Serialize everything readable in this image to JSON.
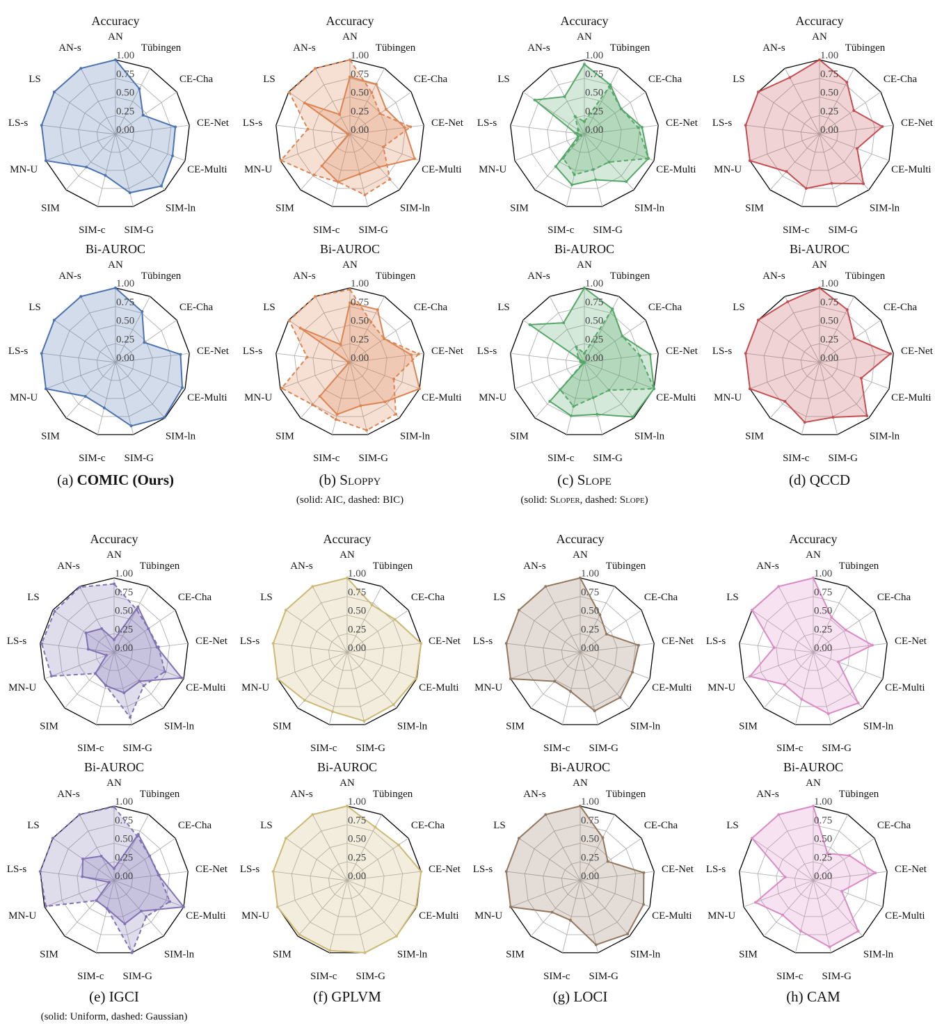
{
  "panels": [
    {
      "label": "(a)",
      "name": "COMIC (Ours)",
      "bold": true,
      "smallcaps": false,
      "note": []
    },
    {
      "label": "(b)",
      "name": "Sloppy",
      "bold": false,
      "smallcaps": true,
      "note": [
        {
          "text": "(solid: AIC, dashed: BIC)",
          "sc": false
        }
      ]
    },
    {
      "label": "(c)",
      "name": "Slope",
      "bold": false,
      "smallcaps": true,
      "note": [
        {
          "text": "(solid: ",
          "sc": false
        },
        {
          "text": "Sloper",
          "sc": true
        },
        {
          "text": ", dashed: ",
          "sc": false
        },
        {
          "text": "Slope",
          "sc": true
        },
        {
          "text": ")",
          "sc": false
        }
      ]
    },
    {
      "label": "(d)",
      "name": "QCCD",
      "bold": false,
      "smallcaps": false,
      "note": []
    },
    {
      "label": "(e)",
      "name": "IGCI",
      "bold": false,
      "smallcaps": false,
      "note": [
        {
          "text": "(solid: Uniform, dashed: Gaussian)",
          "sc": false
        }
      ]
    },
    {
      "label": "(f)",
      "name": "GPLVM",
      "bold": false,
      "smallcaps": false,
      "note": []
    },
    {
      "label": "(g)",
      "name": "LOCI",
      "bold": false,
      "smallcaps": false,
      "note": []
    },
    {
      "label": "(h)",
      "name": "CAM",
      "bold": false,
      "smallcaps": false,
      "note": []
    }
  ],
  "chart_data": [
    {
      "type": "radar",
      "panel": "a",
      "title": "Accuracy",
      "color": "#4c72b0",
      "rlim": [
        0,
        1
      ],
      "rticks": [
        "0.00",
        "0.25",
        "0.50",
        "0.75",
        "1.00"
      ],
      "grid": true,
      "categories": [
        "AN",
        "Tübingen",
        "CE-Cha",
        "CE-Net",
        "CE-Multi",
        "SIM-ln",
        "SIM-G",
        "SIM-c",
        "SIM",
        "MN-U",
        "LS-s",
        "LS",
        "AN-s"
      ],
      "series": [
        {
          "line": "solid",
          "values": [
            1.0,
            0.69,
            0.45,
            0.81,
            0.82,
            0.93,
            0.81,
            0.57,
            0.59,
            1.0,
            1.0,
            1.0,
            1.0
          ]
        }
      ]
    },
    {
      "type": "radar",
      "panel": "a",
      "title": "Bi-AUROC",
      "color": "#4c72b0",
      "rlim": [
        0,
        1
      ],
      "rticks": [
        "0.00",
        "0.25",
        "0.50",
        "0.75",
        "1.00"
      ],
      "grid": true,
      "categories": [
        "AN",
        "Tübingen",
        "CE-Cha",
        "CE-Net",
        "CE-Multi",
        "SIM-ln",
        "SIM-G",
        "SIM-c",
        "SIM",
        "MN-U",
        "LS-s",
        "LS",
        "AN-s"
      ],
      "series": [
        {
          "line": "solid",
          "values": [
            1.0,
            0.77,
            0.47,
            0.88,
            0.96,
            0.99,
            0.88,
            0.63,
            0.61,
            1.0,
            1.0,
            1.0,
            1.0
          ]
        }
      ]
    },
    {
      "type": "radar",
      "panel": "b",
      "title": "Accuracy",
      "color": "#dd8452",
      "rlim": [
        0,
        1
      ],
      "rticks": [
        "0.00",
        "0.25",
        "0.50",
        "0.75",
        "1.00"
      ],
      "grid": true,
      "categories": [
        "AN",
        "Tübingen",
        "CE-Cha",
        "CE-Net",
        "CE-Multi",
        "SIM-ln",
        "SIM-G",
        "SIM-c",
        "SIM",
        "MN-U",
        "LS-s",
        "LS",
        "AN-s"
      ],
      "series": [
        {
          "name": "AIC",
          "line": "solid",
          "values": [
            0.77,
            0.76,
            0.59,
            0.74,
            0.93,
            0.59,
            0.55,
            0.66,
            0.57,
            0.03,
            0.03,
            0.74,
            0.3
          ]
        },
        {
          "name": "BIC",
          "line": "dashed",
          "values": [
            1.0,
            0.63,
            0.49,
            0.82,
            0.48,
            0.81,
            0.84,
            0.66,
            0.73,
            0.99,
            0.57,
            0.99,
            1.0
          ]
        }
      ]
    },
    {
      "type": "radar",
      "panel": "b",
      "title": "Bi-AUROC",
      "color": "#dd8452",
      "rlim": [
        0,
        1
      ],
      "rticks": [
        "0.00",
        "0.25",
        "0.50",
        "0.75",
        "1.00"
      ],
      "grid": true,
      "categories": [
        "AN",
        "Tübingen",
        "CE-Cha",
        "CE-Net",
        "CE-Multi",
        "SIM-ln",
        "SIM-G",
        "SIM-c",
        "SIM",
        "MN-U",
        "LS-s",
        "LS",
        "AN-s"
      ],
      "series": [
        {
          "name": "AIC",
          "line": "solid",
          "values": [
            0.8,
            0.8,
            0.56,
            0.83,
            1.0,
            0.71,
            0.6,
            0.72,
            0.61,
            0.02,
            0.02,
            0.81,
            0.27
          ]
        },
        {
          "name": "BIC",
          "line": "dashed",
          "values": [
            0.98,
            0.61,
            0.56,
            0.93,
            0.63,
            0.93,
            0.94,
            0.79,
            0.76,
            0.98,
            0.58,
            0.99,
            1.0
          ]
        }
      ]
    },
    {
      "type": "radar",
      "panel": "c",
      "title": "Accuracy",
      "color": "#55a868",
      "rlim": [
        0,
        1
      ],
      "rticks": [
        "0.00",
        "0.25",
        "0.50",
        "0.75",
        "1.00"
      ],
      "grid": true,
      "categories": [
        "AN",
        "Tübingen",
        "CE-Cha",
        "CE-Net",
        "CE-Multi",
        "SIM-ln",
        "SIM-G",
        "SIM-c",
        "SIM",
        "MN-U",
        "LS-s",
        "LS",
        "AN-s"
      ],
      "series": [
        {
          "name": "Sloper",
          "line": "solid",
          "values": [
            0.94,
            0.75,
            0.6,
            0.78,
            0.92,
            0.85,
            0.63,
            0.7,
            0.58,
            0.09,
            0.12,
            0.81,
            0.57
          ]
        },
        {
          "name": "Slope",
          "line": "dashed",
          "values": [
            0.17,
            0.72,
            0.6,
            0.73,
            0.92,
            0.5,
            0.49,
            0.56,
            0.43,
            0.05,
            0.1,
            0.1,
            0.27
          ]
        }
      ]
    },
    {
      "type": "radar",
      "panel": "c",
      "title": "Bi-AUROC",
      "color": "#55a868",
      "rlim": [
        0,
        1
      ],
      "rticks": [
        "0.00",
        "0.25",
        "0.50",
        "0.75",
        "1.00"
      ],
      "grid": true,
      "categories": [
        "AN",
        "Tübingen",
        "CE-Cha",
        "CE-Net",
        "CE-Multi",
        "SIM-ln",
        "SIM-G",
        "SIM-c",
        "SIM",
        "MN-U",
        "LS-s",
        "LS",
        "AN-s"
      ],
      "series": [
        {
          "name": "Sloper",
          "line": "solid",
          "values": [
            1.0,
            0.81,
            0.62,
            0.89,
            1.0,
            0.98,
            0.72,
            0.74,
            0.7,
            0.0,
            0.0,
            0.89,
            0.6
          ]
        },
        {
          "name": "Slope",
          "line": "dashed",
          "values": [
            0.12,
            0.81,
            0.62,
            0.75,
            1.0,
            0.5,
            0.49,
            0.61,
            0.49,
            0.02,
            0.05,
            0.1,
            0.23
          ]
        }
      ]
    },
    {
      "type": "radar",
      "panel": "d",
      "title": "Accuracy",
      "color": "#c44e52",
      "rlim": [
        0,
        1
      ],
      "rticks": [
        "0.00",
        "0.25",
        "0.50",
        "0.75",
        "1.00"
      ],
      "grid": true,
      "categories": [
        "AN",
        "Tübingen",
        "CE-Cha",
        "CE-Net",
        "CE-Multi",
        "SIM-ln",
        "SIM-G",
        "SIM-c",
        "SIM",
        "MN-U",
        "LS-s",
        "LS",
        "AN-s"
      ],
      "series": [
        {
          "line": "solid",
          "values": [
            1.0,
            0.79,
            0.56,
            0.85,
            0.54,
            0.89,
            0.68,
            0.75,
            0.67,
            1.0,
            1.0,
            1.0,
            0.86
          ]
        }
      ]
    },
    {
      "type": "radar",
      "panel": "d",
      "title": "Bi-AUROC",
      "color": "#c44e52",
      "rlim": [
        0,
        1
      ],
      "rticks": [
        "0.00",
        "0.25",
        "0.50",
        "0.75",
        "1.00"
      ],
      "grid": true,
      "categories": [
        "AN",
        "Tübingen",
        "CE-Cha",
        "CE-Net",
        "CE-Multi",
        "SIM-ln",
        "SIM-G",
        "SIM-c",
        "SIM",
        "MN-U",
        "LS-s",
        "LS",
        "AN-s"
      ],
      "series": [
        {
          "line": "solid",
          "values": [
            1.0,
            0.8,
            0.57,
            0.96,
            0.6,
            0.96,
            0.76,
            0.83,
            0.7,
            1.0,
            1.0,
            1.0,
            0.92
          ]
        }
      ]
    },
    {
      "type": "radar",
      "panel": "e",
      "title": "Accuracy",
      "color": "#8172b3",
      "rlim": [
        0,
        1
      ],
      "rticks": [
        "0.00",
        "0.25",
        "0.50",
        "0.75",
        "1.00"
      ],
      "grid": true,
      "categories": [
        "AN",
        "Tübingen",
        "CE-Cha",
        "CE-Net",
        "CE-Multi",
        "SIM-ln",
        "SIM-G",
        "SIM-c",
        "SIM",
        "MN-U",
        "LS-s",
        "LS",
        "AN-s"
      ],
      "series": [
        {
          "name": "Uniform",
          "line": "solid",
          "values": [
            0.17,
            0.69,
            0.56,
            0.58,
            0.97,
            0.52,
            0.56,
            0.46,
            0.38,
            0.11,
            0.35,
            0.46,
            0.36
          ]
        },
        {
          "name": "Gaussian",
          "line": "dashed",
          "values": [
            0.92,
            0.65,
            0.56,
            0.6,
            0.73,
            0.6,
            0.9,
            0.46,
            0.38,
            0.9,
            0.98,
            0.97,
            0.99
          ]
        }
      ]
    },
    {
      "type": "radar",
      "panel": "e",
      "title": "Bi-AUROC",
      "color": "#8172b3",
      "rlim": [
        0,
        1
      ],
      "rticks": [
        "0.00",
        "0.25",
        "0.50",
        "0.75",
        "1.00"
      ],
      "grid": true,
      "categories": [
        "AN",
        "Tübingen",
        "CE-Cha",
        "CE-Net",
        "CE-Multi",
        "SIM-ln",
        "SIM-G",
        "SIM-c",
        "SIM",
        "MN-U",
        "LS-s",
        "LS",
        "AN-s"
      ],
      "series": [
        {
          "name": "Uniform",
          "line": "solid",
          "values": [
            0.16,
            0.7,
            0.58,
            0.6,
            1.0,
            0.55,
            0.6,
            0.39,
            0.36,
            0.07,
            0.43,
            0.51,
            0.37
          ]
        },
        {
          "name": "Gaussian",
          "line": "dashed",
          "values": [
            0.99,
            0.67,
            0.58,
            0.61,
            0.8,
            0.65,
            1.0,
            0.39,
            0.36,
            0.98,
            1.0,
            1.0,
            1.0
          ]
        }
      ]
    },
    {
      "type": "radar",
      "panel": "f",
      "title": "Accuracy",
      "color": "#ccb974",
      "rlim": [
        0,
        1
      ],
      "rticks": [
        "0.00",
        "0.25",
        "0.50",
        "0.75",
        "1.00"
      ],
      "grid": true,
      "categories": [
        "AN",
        "Tübingen",
        "CE-Cha",
        "CE-Net",
        "CE-Multi",
        "SIM-ln",
        "SIM-G",
        "SIM-c",
        "SIM",
        "MN-U",
        "LS-s",
        "LS",
        "AN-s"
      ],
      "series": [
        {
          "line": "solid",
          "values": [
            1.0,
            0.72,
            0.78,
            1.0,
            0.99,
            0.94,
            0.95,
            0.82,
            0.86,
            1.0,
            1.0,
            1.0,
            1.0
          ]
        }
      ]
    },
    {
      "type": "radar",
      "panel": "f",
      "title": "Bi-AUROC",
      "color": "#ccb974",
      "rlim": [
        0,
        1
      ],
      "rticks": [
        "0.00",
        "0.25",
        "0.50",
        "0.75",
        "1.00"
      ],
      "grid": true,
      "categories": [
        "AN",
        "Tübingen",
        "CE-Cha",
        "CE-Net",
        "CE-Multi",
        "SIM-ln",
        "SIM-G",
        "SIM-c",
        "SIM",
        "MN-U",
        "LS-s",
        "LS",
        "AN-s"
      ],
      "series": [
        {
          "line": "solid",
          "values": [
            1.0,
            0.81,
            0.84,
            1.0,
            0.99,
            1.0,
            1.0,
            0.97,
            0.97,
            1.0,
            1.0,
            1.0,
            1.0
          ]
        }
      ]
    },
    {
      "type": "radar",
      "panel": "g",
      "title": "Accuracy",
      "color": "#937860",
      "rlim": [
        0,
        1
      ],
      "rticks": [
        "0.00",
        "0.25",
        "0.50",
        "0.75",
        "1.00"
      ],
      "grid": true,
      "categories": [
        "AN",
        "Tübingen",
        "CE-Cha",
        "CE-Net",
        "CE-Multi",
        "SIM-ln",
        "SIM-G",
        "SIM-c",
        "SIM",
        "MN-U",
        "LS-s",
        "LS",
        "AN-s"
      ],
      "series": [
        {
          "line": "solid",
          "values": [
            1.0,
            0.57,
            0.43,
            0.79,
            0.75,
            0.81,
            0.81,
            0.54,
            0.52,
            1.0,
            1.0,
            1.0,
            1.0
          ]
        }
      ]
    },
    {
      "type": "radar",
      "panel": "g",
      "title": "Bi-AUROC",
      "color": "#937860",
      "rlim": [
        0,
        1
      ],
      "rticks": [
        "0.00",
        "0.25",
        "0.50",
        "0.75",
        "1.00"
      ],
      "grid": true,
      "categories": [
        "AN",
        "Tübingen",
        "CE-Cha",
        "CE-Net",
        "CE-Multi",
        "SIM-ln",
        "SIM-G",
        "SIM-c",
        "SIM",
        "MN-U",
        "LS-s",
        "LS",
        "AN-s"
      ],
      "series": [
        {
          "line": "solid",
          "values": [
            1.0,
            0.65,
            0.45,
            0.86,
            0.91,
            0.96,
            0.89,
            0.55,
            0.57,
            1.0,
            1.0,
            1.0,
            1.0
          ]
        }
      ]
    },
    {
      "type": "radar",
      "panel": "h",
      "title": "Accuracy",
      "color": "#da8bc3",
      "rlim": [
        0,
        1
      ],
      "rticks": [
        "0.00",
        "0.25",
        "0.50",
        "0.75",
        "1.00"
      ],
      "grid": true,
      "categories": [
        "AN",
        "Tübingen",
        "CE-Cha",
        "CE-Net",
        "CE-Multi",
        "SIM-ln",
        "SIM-G",
        "SIM-c",
        "SIM",
        "MN-U",
        "LS-s",
        "LS",
        "AN-s"
      ],
      "series": [
        {
          "line": "solid",
          "values": [
            1.0,
            0.53,
            0.53,
            0.8,
            0.36,
            0.91,
            0.85,
            0.65,
            0.58,
            0.91,
            0.53,
            1.0,
            1.0
          ]
        }
      ]
    },
    {
      "type": "radar",
      "panel": "h",
      "title": "Bi-AUROC",
      "color": "#da8bc3",
      "rlim": [
        0,
        1
      ],
      "rticks": [
        "0.00",
        "0.25",
        "0.50",
        "0.75",
        "1.00"
      ],
      "grid": true,
      "categories": [
        "AN",
        "Tübingen",
        "CE-Cha",
        "CE-Net",
        "CE-Multi",
        "SIM-ln",
        "SIM-G",
        "SIM-c",
        "SIM",
        "MN-U",
        "LS-s",
        "LS",
        "AN-s"
      ],
      "series": [
        {
          "line": "solid",
          "values": [
            1.0,
            0.41,
            0.59,
            0.84,
            0.41,
            0.91,
            0.92,
            0.7,
            0.62,
            0.83,
            0.38,
            1.0,
            1.0
          ]
        }
      ]
    }
  ]
}
